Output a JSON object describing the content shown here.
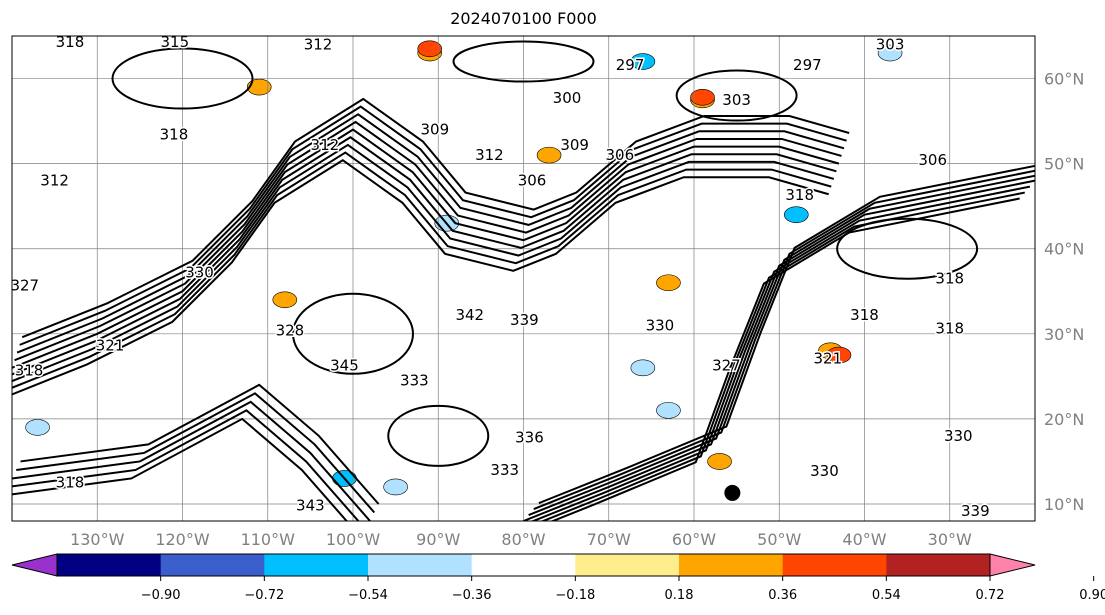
{
  "title": "2024070100 F000",
  "map": {
    "lon_range": [
      -140,
      -20
    ],
    "lat_range": [
      8,
      65
    ],
    "lon_ticks": [
      {
        "value": -130,
        "label": "130°W"
      },
      {
        "value": -120,
        "label": "120°W"
      },
      {
        "value": -110,
        "label": "110°W"
      },
      {
        "value": -100,
        "label": "100°W"
      },
      {
        "value": -90,
        "label": "90°W"
      },
      {
        "value": -80,
        "label": "80°W"
      },
      {
        "value": -70,
        "label": "70°W"
      },
      {
        "value": -60,
        "label": "60°W"
      },
      {
        "value": -50,
        "label": "50°W"
      },
      {
        "value": -40,
        "label": "40°W"
      },
      {
        "value": -30,
        "label": "30°W"
      }
    ],
    "lat_ticks": [
      {
        "value": 60,
        "label": "60°N"
      },
      {
        "value": 50,
        "label": "50°N"
      },
      {
        "value": 40,
        "label": "40°N"
      },
      {
        "value": 30,
        "label": "30°N"
      },
      {
        "value": 20,
        "label": "20°N"
      },
      {
        "value": 10,
        "label": "10°N"
      }
    ],
    "contour_labels": [
      {
        "text": "318",
        "lon": -133.2,
        "lat": 64.3
      },
      {
        "text": "315",
        "lon": -120.9,
        "lat": 64.3
      },
      {
        "text": "312",
        "lon": -104.1,
        "lat": 64
      },
      {
        "text": "303",
        "lon": -37,
        "lat": 64
      },
      {
        "text": "297",
        "lon": -46.7,
        "lat": 61.6
      },
      {
        "text": "297",
        "lon": -67.5,
        "lat": 61.6
      },
      {
        "text": "300",
        "lon": -74.9,
        "lat": 57.7
      },
      {
        "text": "303",
        "lon": -55,
        "lat": 57.5
      },
      {
        "text": "309",
        "lon": -90.4,
        "lat": 54
      },
      {
        "text": "312",
        "lon": -84,
        "lat": 51
      },
      {
        "text": "306",
        "lon": -79,
        "lat": 48
      },
      {
        "text": "309",
        "lon": -74,
        "lat": 52.2
      },
      {
        "text": "306",
        "lon": -68.7,
        "lat": 51
      },
      {
        "text": "306",
        "lon": -32,
        "lat": 50.4
      },
      {
        "text": "312",
        "lon": -135,
        "lat": 48
      },
      {
        "text": "318",
        "lon": -121,
        "lat": 53.4
      },
      {
        "text": "312",
        "lon": -103.3,
        "lat": 52.2
      },
      {
        "text": "318",
        "lon": -47.6,
        "lat": 46.3
      },
      {
        "text": "330",
        "lon": -118,
        "lat": 37.2
      },
      {
        "text": "327",
        "lon": -138.5,
        "lat": 35.7
      },
      {
        "text": "321",
        "lon": -128.5,
        "lat": 28.6
      },
      {
        "text": "318",
        "lon": -138,
        "lat": 25.7
      },
      {
        "text": "342",
        "lon": -86.3,
        "lat": 32.2
      },
      {
        "text": "339",
        "lon": -79.9,
        "lat": 31.6
      },
      {
        "text": "330",
        "lon": -64,
        "lat": 31
      },
      {
        "text": "328",
        "lon": -107.4,
        "lat": 30.4
      },
      {
        "text": "345",
        "lon": -101,
        "lat": 26.3
      },
      {
        "text": "333",
        "lon": -92.8,
        "lat": 24.5
      },
      {
        "text": "336",
        "lon": -79.3,
        "lat": 17.8
      },
      {
        "text": "333",
        "lon": -82.2,
        "lat": 14
      },
      {
        "text": "318",
        "lon": -133.2,
        "lat": 12.5
      },
      {
        "text": "343",
        "lon": -105,
        "lat": 9.8
      },
      {
        "text": "327",
        "lon": -56.2,
        "lat": 26.3
      },
      {
        "text": "321",
        "lon": -44.3,
        "lat": 27.1
      },
      {
        "text": "318",
        "lon": -40,
        "lat": 32.2
      },
      {
        "text": "318",
        "lon": -30,
        "lat": 30.6
      },
      {
        "text": "318",
        "lon": -30,
        "lat": 36.5
      },
      {
        "text": "330",
        "lon": -29,
        "lat": 18
      },
      {
        "text": "330",
        "lon": -44.7,
        "lat": 13.9
      },
      {
        "text": "339",
        "lon": -27,
        "lat": 9.2
      }
    ],
    "shaded_patches": [
      {
        "lon": -91,
        "lat": 63,
        "level": "0.36"
      },
      {
        "lon": -91,
        "lat": 63.5,
        "level": "0.54"
      },
      {
        "lon": -59,
        "lat": 57.5,
        "level": "0.36"
      },
      {
        "lon": -59,
        "lat": 57.8,
        "level": "0.54"
      },
      {
        "lon": -111,
        "lat": 59,
        "level": "0.36"
      },
      {
        "lon": -44,
        "lat": 28,
        "level": "0.36"
      },
      {
        "lon": -43,
        "lat": 27.5,
        "level": "0.54"
      },
      {
        "lon": -63,
        "lat": 36,
        "level": "0.36"
      },
      {
        "lon": -77,
        "lat": 51,
        "level": "0.36"
      },
      {
        "lon": -66,
        "lat": 62,
        "level": "-0.36"
      },
      {
        "lon": -37,
        "lat": 63,
        "level": "-0.18"
      },
      {
        "lon": -89,
        "lat": 43,
        "level": "-0.18"
      },
      {
        "lon": -95,
        "lat": 12,
        "level": "-0.18"
      },
      {
        "lon": -101,
        "lat": 13,
        "level": "-0.36"
      },
      {
        "lon": -137,
        "lat": 19,
        "level": "-0.18"
      },
      {
        "lon": -66,
        "lat": 26,
        "level": "-0.18"
      },
      {
        "lon": -48,
        "lat": 44,
        "level": "-0.36"
      },
      {
        "lon": -108,
        "lat": 34,
        "level": "0.36"
      },
      {
        "lon": -63,
        "lat": 21,
        "level": "-0.18"
      },
      {
        "lon": -57,
        "lat": 15,
        "level": "0.36"
      }
    ],
    "colors": {
      "grid": "#808080",
      "contour": "#000000",
      "marker": "#000000"
    }
  },
  "colorbar": {
    "colors": [
      "#9932cc",
      "#000080",
      "#3a5fcd",
      "#00bfff",
      "#b0e2ff",
      "#ffffff",
      "#ffec8b",
      "#ffa500",
      "#ff4500",
      "#b22222",
      "#ff82ab"
    ],
    "ticks": [
      "−0.90",
      "−0.72",
      "−0.54",
      "−0.36",
      "−0.18",
      "0.18",
      "0.36",
      "0.54",
      "0.72",
      "0.90"
    ]
  }
}
